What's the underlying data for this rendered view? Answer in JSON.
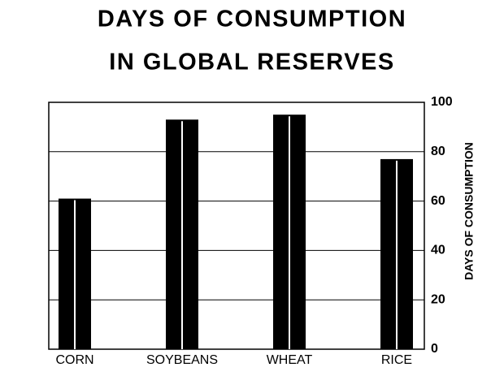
{
  "chart_data": {
    "type": "bar",
    "title": "DAYS OF CONSUMPTION",
    "subtitle": "IN GLOBAL RESERVES",
    "y_label": "DAYS OF CONSUMPTION",
    "categories": [
      "CORN",
      "SOYBEANS",
      "WHEAT",
      "RICE"
    ],
    "values": [
      61,
      93,
      95,
      77
    ],
    "color": "#000000",
    "ylim": [
      0,
      100
    ],
    "yticks": [
      0,
      20,
      40,
      60,
      80,
      100
    ],
    "grid": true
  }
}
